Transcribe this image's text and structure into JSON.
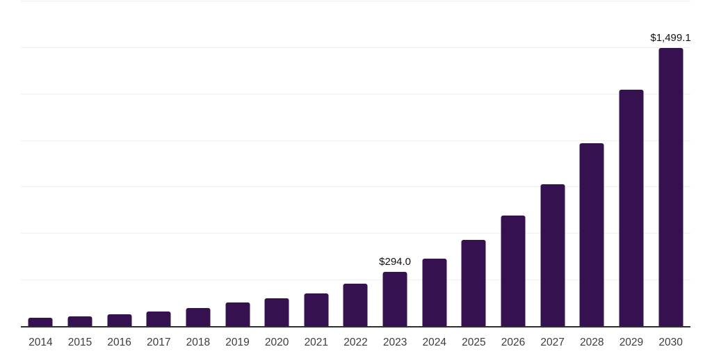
{
  "chart_data": {
    "type": "bar",
    "title": "",
    "xlabel": "",
    "ylabel": "",
    "categories": [
      "2014",
      "2015",
      "2016",
      "2017",
      "2018",
      "2019",
      "2020",
      "2021",
      "2022",
      "2023",
      "2024",
      "2025",
      "2026",
      "2027",
      "2028",
      "2029",
      "2030"
    ],
    "values": [
      48,
      56,
      67,
      82,
      101,
      130,
      152,
      181,
      233,
      294.0,
      368,
      467,
      598,
      766,
      988,
      1274,
      1499.1
    ],
    "annotations": [
      {
        "category": "2023",
        "text": "$294.0"
      },
      {
        "category": "2030",
        "text": "$1,499.1"
      }
    ],
    "ylim": [
      0,
      1750
    ],
    "grid_step": 250,
    "grid": true,
    "legend": false,
    "y_tick_labels_shown": false,
    "colors": {
      "bar": "#351150",
      "gridline": "#efefef",
      "axis_line": "#2f2f2f",
      "x_tick_label": "#3c3c3c",
      "annotation": "#111111",
      "background": "#ffffff"
    }
  }
}
